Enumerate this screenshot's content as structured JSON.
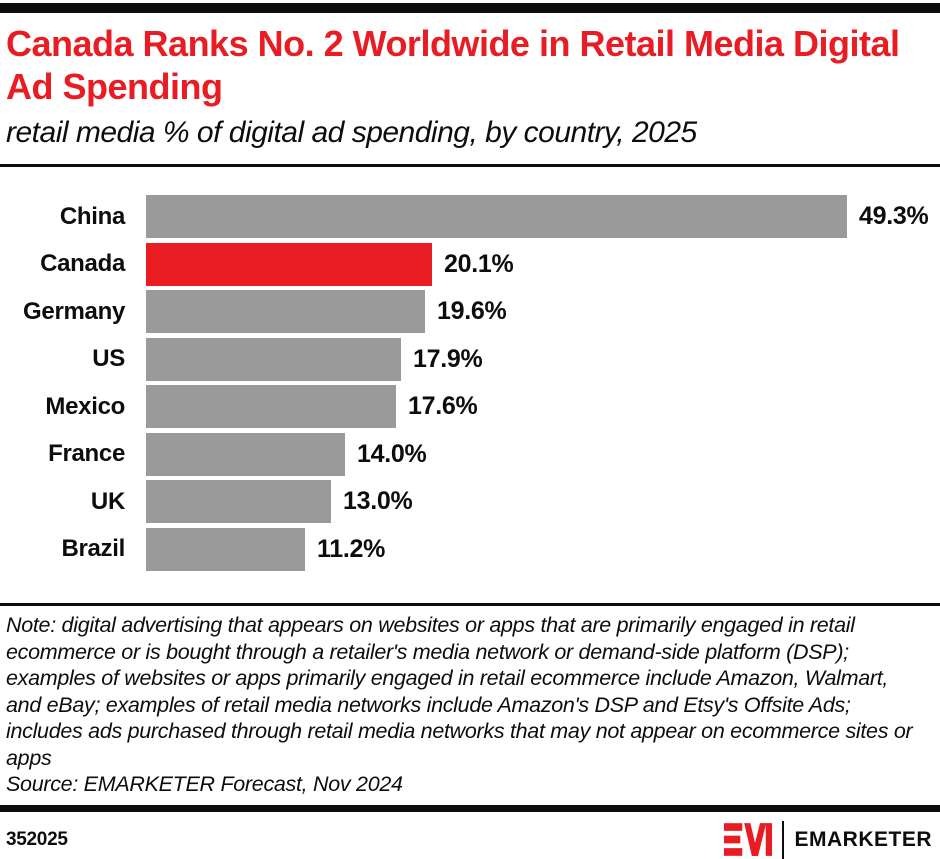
{
  "header": {
    "title": "Canada Ranks No. 2 Worldwide in Retail Media Digital Ad Spending",
    "subtitle": "retail media % of digital ad spending, by country, 2025"
  },
  "colors": {
    "accent_red": "#e91c23",
    "bar_gray": "#9a9a9a",
    "text_black": "#0d0d0d"
  },
  "chart_data": {
    "type": "bar",
    "orientation": "horizontal",
    "title": "retail media % of digital ad spending, by country, 2025",
    "categories": [
      "China",
      "Canada",
      "Germany",
      "US",
      "Mexico",
      "France",
      "UK",
      "Brazil"
    ],
    "values": [
      49.3,
      20.1,
      19.6,
      17.9,
      17.6,
      14.0,
      13.0,
      11.2
    ],
    "value_labels": [
      "49.3%",
      "20.1%",
      "19.6%",
      "17.9%",
      "17.6%",
      "14.0%",
      "13.0%",
      "11.2%"
    ],
    "highlight_category": "Canada",
    "xlim": [
      0,
      55
    ],
    "grid": false,
    "legend": false,
    "value_label_position": "right-of-bar"
  },
  "note": {
    "note_text": "Note: digital advertising that appears on websites or apps that are primarily engaged in retail ecommerce or is bought through a retailer's media network or demand-side platform (DSP); examples of websites or apps primarily engaged in retail ecommerce include Amazon, Walmart, and eBay; examples of retail media networks include Amazon's DSP and Etsy's Offsite Ads; includes ads purchased through retail media networks that may not appear on ecommerce sites or apps",
    "source_text": "Source: EMARKETER Forecast, Nov 2024"
  },
  "footer": {
    "chart_id": "352025",
    "brand_name": "EMARKETER",
    "logo_mark": "EM-logo"
  }
}
